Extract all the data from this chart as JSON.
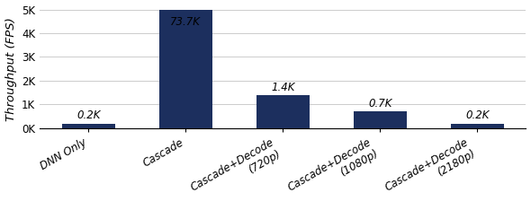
{
  "categories": [
    "DNN Only",
    "Cascade",
    "Cascade+Decode\n(720p)",
    "Cascade+Decode\n(1080p)",
    "Cascade+Decode\n(2180p)"
  ],
  "display_values": [
    200,
    5000,
    1400,
    700,
    200
  ],
  "labels": [
    "0.2K",
    "73.7K",
    "1.4K",
    "0.7K",
    "0.2K"
  ],
  "label_offsets": [
    80,
    -300,
    80,
    80,
    80
  ],
  "label_va": [
    "bottom",
    "top",
    "bottom",
    "bottom",
    "bottom"
  ],
  "bar_color": "#1c2f5e",
  "ylabel": "Throughput (FPS)",
  "ylim": [
    0,
    5000
  ],
  "yticks": [
    0,
    1000,
    2000,
    3000,
    4000,
    5000
  ],
  "ytick_labels": [
    "0K",
    "1K",
    "2K",
    "3K",
    "4K",
    "5K"
  ],
  "background_color": "#ffffff",
  "label_fontsize": 8.5,
  "tick_fontsize": 8.5,
  "ylabel_fontsize": 9.5,
  "bar_width": 0.55,
  "grid_color": "#cccccc",
  "grid_linewidth": 0.7
}
